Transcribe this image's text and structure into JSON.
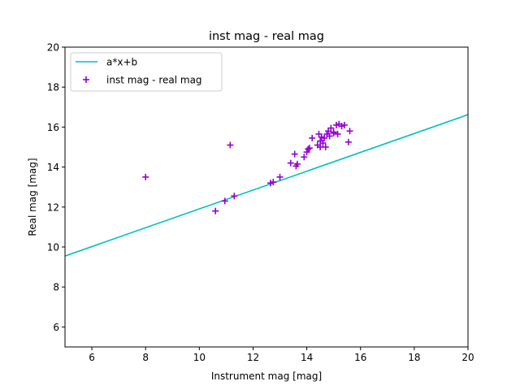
{
  "chart_data": {
    "type": "scatter",
    "title": "inst mag - real mag",
    "xlabel": "Instrument mag [mag]",
    "ylabel": "Real mag [mag]",
    "xlim": [
      5,
      20
    ],
    "ylim": [
      5,
      20
    ],
    "xticks": [
      6,
      8,
      10,
      12,
      14,
      16,
      18,
      20
    ],
    "yticks": [
      6,
      8,
      10,
      12,
      14,
      16,
      18,
      20
    ],
    "legend_position": "top-left",
    "grid": false,
    "series": [
      {
        "name": "a*x+b",
        "kind": "line",
        "color": "#00bfbf",
        "x": [
          5,
          20
        ],
        "y": [
          9.55,
          16.62
        ]
      },
      {
        "name": "inst mag - real mag",
        "kind": "scatter",
        "marker": "plus",
        "color": "#9400d3",
        "x": [
          8.0,
          10.6,
          10.95,
          11.15,
          11.3,
          12.65,
          12.75,
          13.0,
          13.4,
          13.55,
          13.65,
          13.6,
          13.9,
          14.0,
          14.05,
          14.1,
          14.2,
          14.4,
          14.45,
          14.5,
          14.55,
          14.5,
          14.6,
          14.65,
          14.7,
          14.75,
          14.8,
          14.85,
          14.9,
          15.0,
          15.1,
          15.15,
          15.2,
          15.3,
          15.4,
          15.55,
          15.6,
          15.0
        ],
        "y": [
          13.5,
          11.8,
          12.3,
          15.1,
          12.55,
          13.2,
          13.25,
          13.5,
          14.2,
          14.65,
          14.15,
          14.05,
          14.5,
          14.75,
          14.9,
          14.95,
          15.45,
          15.1,
          15.65,
          15.3,
          15.5,
          15.0,
          15.2,
          15.45,
          15.0,
          15.65,
          15.8,
          15.55,
          15.95,
          15.75,
          16.1,
          15.65,
          16.15,
          16.05,
          16.1,
          15.25,
          15.8,
          15.7
        ]
      }
    ]
  }
}
